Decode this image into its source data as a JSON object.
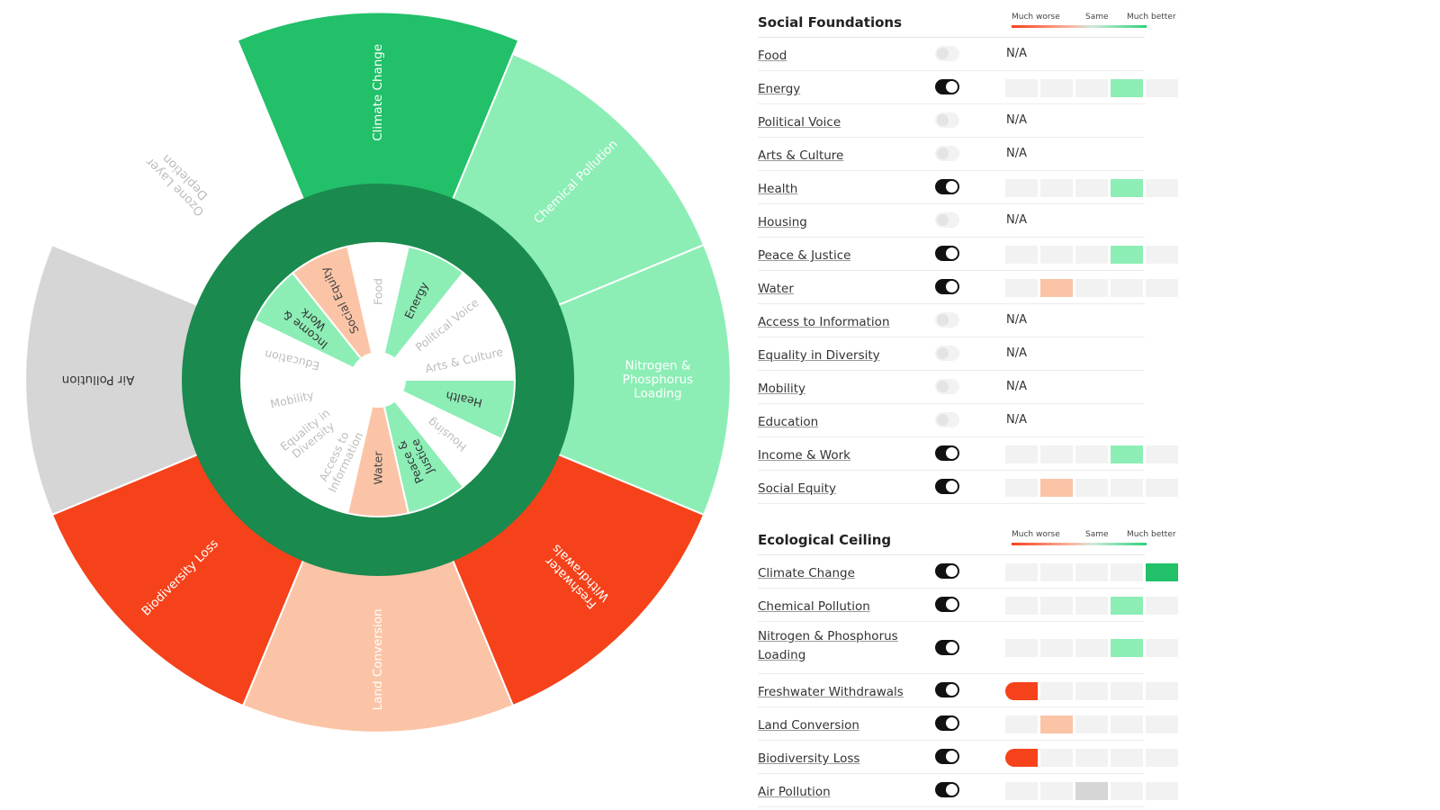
{
  "colors": {
    "ring": "#1a8a4e",
    "much_better": "#22c069",
    "better": "#8ceeb5",
    "worse": "#fbc4a6",
    "much_worse": "#f5421a",
    "neutral": "#d6d6d6",
    "no_data": "#ffffff",
    "scale_bg": "#f2f2f2"
  },
  "outer_ring": [
    {
      "label": "Climate Change",
      "status": "much_better",
      "extent": 0.92,
      "lines": [
        "Climate Change"
      ]
    },
    {
      "label": "Chemical Pollution",
      "status": "better",
      "extent": 0.84,
      "lines": [
        "Chemical Pollution"
      ]
    },
    {
      "label": "Nitrogen & Phosphorus Loading",
      "status": "better",
      "extent": 0.84,
      "lines": [
        "Nitrogen &",
        "Phosphorus",
        "Loading"
      ]
    },
    {
      "label": "Freshwater Withdrawals",
      "status": "much_worse",
      "extent": 0.84,
      "lines": [
        "Freshwater",
        "Withdrawals"
      ]
    },
    {
      "label": "Land Conversion",
      "status": "worse",
      "extent": 0.84,
      "lines": [
        "Land Conversion"
      ]
    },
    {
      "label": "Biodiversity Loss",
      "status": "much_worse",
      "extent": 0.84,
      "lines": [
        "Biodiversity Loss"
      ]
    },
    {
      "label": "Air Pollution",
      "status": "neutral",
      "extent": 0.84,
      "lines": [
        "Air Pollution"
      ]
    },
    {
      "label": "Ozone Layer Depletion",
      "status": "no_data",
      "extent": 0.84,
      "lines": [
        "Ozone Layer",
        "Depletion"
      ]
    }
  ],
  "inner_ring": [
    {
      "label": "Food",
      "status": "no_data",
      "lines": [
        "Food"
      ]
    },
    {
      "label": "Energy",
      "status": "better",
      "lines": [
        "Energy"
      ]
    },
    {
      "label": "Political Voice",
      "status": "no_data",
      "lines": [
        "Political Voice"
      ]
    },
    {
      "label": "Arts & Culture",
      "status": "no_data",
      "lines": [
        "Arts & Culture"
      ]
    },
    {
      "label": "Health",
      "status": "better",
      "lines": [
        "Health"
      ]
    },
    {
      "label": "Housing",
      "status": "no_data",
      "lines": [
        "Housing"
      ]
    },
    {
      "label": "Peace & Justice",
      "status": "better",
      "lines": [
        "Peace &",
        "Justice"
      ]
    },
    {
      "label": "Water",
      "status": "worse",
      "lines": [
        "Water"
      ]
    },
    {
      "label": "Access to Information",
      "status": "no_data",
      "lines": [
        "Access to",
        "Information"
      ]
    },
    {
      "label": "Equality in Diversity",
      "status": "no_data",
      "lines": [
        "Equality in",
        "Diversity"
      ]
    },
    {
      "label": "Mobility",
      "status": "no_data",
      "lines": [
        "Mobility"
      ]
    },
    {
      "label": "Education",
      "status": "no_data",
      "lines": [
        "Education"
      ]
    },
    {
      "label": "Income & Work",
      "status": "better",
      "lines": [
        "Income &",
        "Work"
      ]
    },
    {
      "label": "Social Equity",
      "status": "worse",
      "lines": [
        "Social Equity"
      ]
    }
  ],
  "legend": {
    "left": "Much worse",
    "mid": "Same",
    "right": "Much better"
  },
  "sections": [
    {
      "title": "Social Foundations",
      "rows": [
        {
          "label": "Food",
          "on": false,
          "value": null,
          "na": "N/A"
        },
        {
          "label": "Energy",
          "on": true,
          "value": 4,
          "status": "better"
        },
        {
          "label": "Political Voice",
          "on": false,
          "value": null,
          "na": "N/A"
        },
        {
          "label": "Arts & Culture",
          "on": false,
          "value": null,
          "na": "N/A"
        },
        {
          "label": "Health",
          "on": true,
          "value": 4,
          "status": "better"
        },
        {
          "label": "Housing",
          "on": false,
          "value": null,
          "na": "N/A"
        },
        {
          "label": "Peace & Justice",
          "on": true,
          "value": 4,
          "status": "better"
        },
        {
          "label": "Water",
          "on": true,
          "value": 2,
          "status": "worse"
        },
        {
          "label": "Access to Information",
          "on": false,
          "value": null,
          "na": "N/A"
        },
        {
          "label": "Equality in Diversity",
          "on": false,
          "value": null,
          "na": "N/A"
        },
        {
          "label": "Mobility",
          "on": false,
          "value": null,
          "na": "N/A"
        },
        {
          "label": "Education",
          "on": false,
          "value": null,
          "na": "N/A"
        },
        {
          "label": "Income & Work",
          "on": true,
          "value": 4,
          "status": "better"
        },
        {
          "label": "Social Equity",
          "on": true,
          "value": 2,
          "status": "worse"
        }
      ]
    },
    {
      "title": "Ecological Ceiling",
      "rows": [
        {
          "label": "Climate Change",
          "on": true,
          "value": 5,
          "status": "much_better"
        },
        {
          "label": "Chemical Pollution",
          "on": true,
          "value": 4,
          "status": "better"
        },
        {
          "label": "Nitrogen & Phosphorus Loading",
          "on": true,
          "value": 4,
          "status": "better"
        },
        {
          "label": "Freshwater Withdrawals",
          "on": true,
          "value": 1,
          "status": "much_worse"
        },
        {
          "label": "Land Conversion",
          "on": true,
          "value": 2,
          "status": "worse"
        },
        {
          "label": "Biodiversity Loss",
          "on": true,
          "value": 1,
          "status": "much_worse"
        },
        {
          "label": "Air Pollution",
          "on": true,
          "value": 3,
          "status": "neutral"
        }
      ]
    }
  ]
}
